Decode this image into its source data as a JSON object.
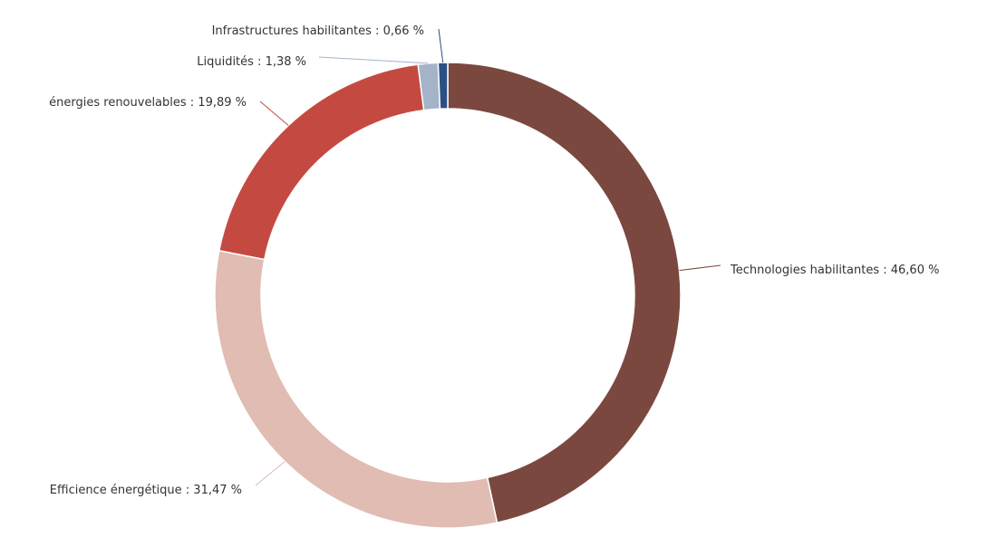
{
  "chart_data": {
    "type": "pie",
    "variant": "donut",
    "categories": [
      "Technologies habilitantes",
      "Efficience énergétique",
      "énergies renouvelables",
      "Liquidités",
      "Infrastructures habilitantes"
    ],
    "values": [
      46.6,
      31.47,
      19.89,
      1.38,
      0.66
    ],
    "labels": [
      "Technologies habilitantes : 46,60 %",
      "Efficience énergétique : 31,47 %",
      "énergies renouvelables : 19,89 %",
      "Liquidités : 1,38 %",
      "Infrastructures habilitantes : 0,66 %"
    ],
    "colors": [
      "#7b4840",
      "#e0bcb3",
      "#c44a41",
      "#a3b3c8",
      "#2c5085"
    ],
    "start": "top",
    "direction": "clockwise",
    "legend": "none"
  }
}
